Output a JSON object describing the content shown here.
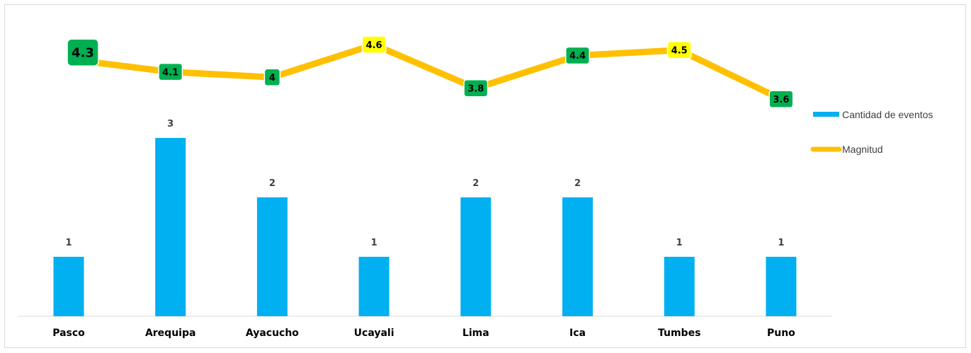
{
  "chart_data": {
    "type": "bar",
    "categories": [
      "Pasco",
      "Arequipa",
      "Ayacucho",
      "Ucayali",
      "Lima",
      "Ica",
      "Tumbes",
      "Puno"
    ],
    "series": [
      {
        "name": "Cantidad de eventos",
        "type": "bar",
        "values": [
          1,
          3,
          2,
          1,
          2,
          2,
          1,
          1
        ],
        "color": "#00b0f0"
      },
      {
        "name": "Magnitud",
        "type": "line",
        "values": [
          4.3,
          4.1,
          4.0,
          4.6,
          3.8,
          4.4,
          4.5,
          3.6
        ],
        "labels": [
          "4.3",
          "4.1",
          "4",
          "4.6",
          "3.8",
          "4.4",
          "4.5",
          "3.6"
        ],
        "color": "#ffc000",
        "label_colors": [
          "#00b050",
          "#00b050",
          "#00b050",
          "#ffff00",
          "#00b050",
          "#00b050",
          "#ffff00",
          "#00b050"
        ]
      }
    ],
    "title": "",
    "xlabel": "",
    "ylabel": "",
    "legend": "right",
    "grid": false
  }
}
